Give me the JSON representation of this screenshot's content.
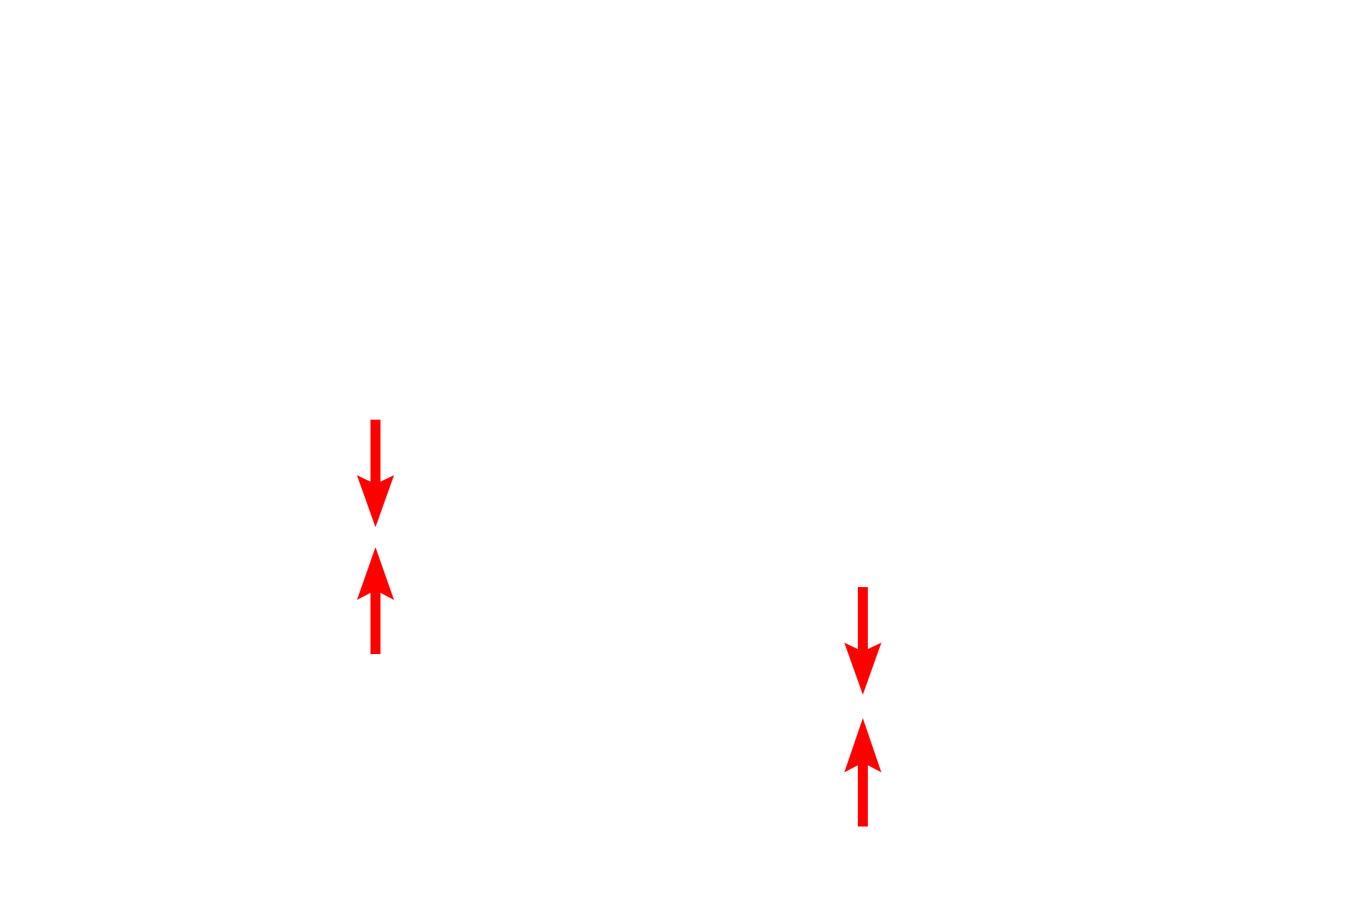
{
  "colors": {
    "arrow": "#ff0000",
    "background": "#ffffff"
  },
  "markers": [
    {
      "name": "arrow-pair-left",
      "icons": [
        "arrow-down-icon",
        "arrow-up-icon"
      ]
    },
    {
      "name": "arrow-pair-right",
      "icons": [
        "arrow-down-icon",
        "arrow-up-icon"
      ]
    }
  ]
}
